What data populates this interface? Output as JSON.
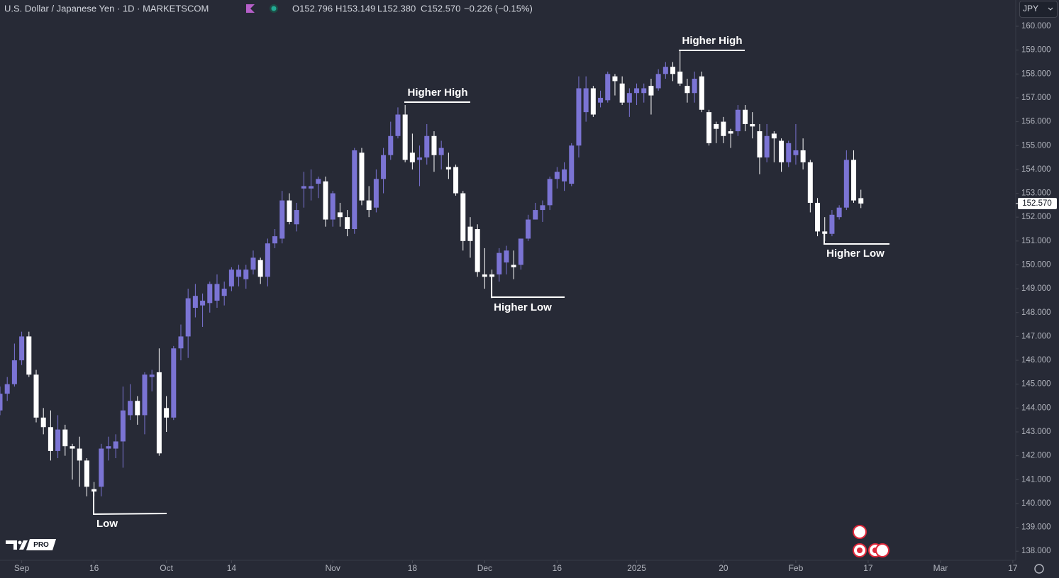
{
  "chart_data": {
    "type": "candlestick",
    "title": "U.S. Dollar / Japanese Yen · 1D · MARKETSCOM",
    "header_values": [
      "O152.796",
      "H153.149",
      "L152.380",
      "C152.570",
      "−0.226 (−0.15%)"
    ],
    "currency": "JPY",
    "logo_badge": "PRO",
    "up_color": "#7b74d4",
    "down_color": "#ffffff",
    "x": [
      0,
      1,
      2,
      3,
      4,
      5,
      6,
      7,
      8,
      9,
      10,
      11,
      12,
      13,
      14,
      15,
      16,
      17,
      18,
      19,
      20,
      21,
      22,
      23,
      24,
      25,
      26,
      27,
      28,
      29,
      30,
      31,
      32,
      33,
      34,
      35,
      36,
      37,
      38,
      39,
      40,
      41,
      42,
      43,
      44,
      45,
      46,
      47,
      48,
      49,
      50,
      51,
      52,
      53,
      54,
      55,
      56,
      57,
      58,
      59,
      60,
      61,
      62,
      63,
      64,
      65,
      66,
      67,
      68,
      69,
      70,
      71,
      72,
      73,
      74,
      75,
      76,
      77,
      78,
      79,
      80,
      81,
      82,
      83,
      84,
      85,
      86,
      87,
      88,
      89,
      90,
      91,
      92,
      93,
      94,
      95,
      96,
      97,
      98,
      99,
      100,
      101,
      102,
      103,
      104,
      105,
      106,
      107,
      108,
      109,
      110,
      111,
      112,
      113,
      114,
      115,
      116,
      117,
      118,
      119
    ],
    "open": [
      143.9,
      144.6,
      145.0,
      146.0,
      147.0,
      145.4,
      143.6,
      143.2,
      142.2,
      143.1,
      142.4,
      142.3,
      141.8,
      140.6,
      140.7,
      142.3,
      142.3,
      142.6,
      143.7,
      144.3,
      143.7,
      145.3,
      145.5,
      144.0,
      143.6,
      146.5,
      147.0,
      148.2,
      148.3,
      148.4,
      148.5,
      148.7,
      149.1,
      149.5,
      149.4,
      149.8,
      150.2,
      149.5,
      150.9,
      151.1,
      152.7,
      151.7,
      153.2,
      153.2,
      153.4,
      153.5,
      151.9,
      152.2,
      152.0,
      151.5,
      154.7,
      152.7,
      152.4,
      153.6,
      154.6,
      155.4,
      156.3,
      154.7,
      154.4,
      154.5,
      155.4,
      154.6,
      154.1,
      154.1,
      153.0,
      151.6,
      151.5,
      149.6,
      149.6,
      149.6,
      150.1,
      150.0,
      150.0,
      151.1,
      151.9,
      152.3,
      152.5,
      153.6,
      153.5,
      153.4,
      155.0,
      156.4,
      157.4,
      156.8,
      156.9,
      157.9,
      157.6,
      156.8,
      157.2,
      157.2,
      157.5,
      157.4,
      158.0,
      158.3,
      158.1,
      157.5,
      157.2,
      157.9,
      156.4,
      155.9,
      156.0,
      155.6,
      155.6,
      156.5,
      155.9,
      155.6,
      154.5,
      155.5,
      155.2,
      154.3,
      154.6,
      154.8,
      154.3,
      152.6,
      151.4,
      151.3,
      152.0,
      152.4,
      154.4,
      152.796
    ],
    "high": [
      144.9,
      145.3,
      146.7,
      147.2,
      147.2,
      145.6,
      144.0,
      143.9,
      143.7,
      143.3,
      142.5,
      142.8,
      141.9,
      140.9,
      142.5,
      142.8,
      142.9,
      144.9,
      145.0,
      144.5,
      145.5,
      145.6,
      146.5,
      144.5,
      146.6,
      147.5,
      149.0,
      149.2,
      148.8,
      149.3,
      149.6,
      149.3,
      149.9,
      150.0,
      150.0,
      150.6,
      150.3,
      151.1,
      151.5,
      153.1,
      153.0,
      152.6,
      153.9,
      154.0,
      153.7,
      153.7,
      153.1,
      152.6,
      152.3,
      154.9,
      154.9,
      153.3,
      154.0,
      154.9,
      156.0,
      156.6,
      156.7,
      155.5,
      155.0,
      155.9,
      155.6,
      155.2,
      154.7,
      154.2,
      153.1,
      152.0,
      151.7,
      150.7,
      149.8,
      150.7,
      150.8,
      150.6,
      151.1,
      152.1,
      152.6,
      152.7,
      153.7,
      154.1,
      154.3,
      155.1,
      157.9,
      157.9,
      157.5,
      157.3,
      158.1,
      158.0,
      157.9,
      157.4,
      157.6,
      157.6,
      157.8,
      158.2,
      158.5,
      158.5,
      159.0,
      157.8,
      158.1,
      158.1,
      156.5,
      156.0,
      156.2,
      155.7,
      156.7,
      156.7,
      156.4,
      155.9,
      155.9,
      155.6,
      155.3,
      155.2,
      155.9,
      155.3,
      154.4,
      152.8,
      152.0,
      152.3,
      152.5,
      154.8,
      154.8,
      153.149
    ],
    "low": [
      143.7,
      144.3,
      144.9,
      145.8,
      145.3,
      143.4,
      142.9,
      141.8,
      141.9,
      142.0,
      141.0,
      140.7,
      140.3,
      140.3,
      140.3,
      141.8,
      141.9,
      141.5,
      143.5,
      143.3,
      142.9,
      144.7,
      142.0,
      143.0,
      143.5,
      146.0,
      146.1,
      147.8,
      147.4,
      148.0,
      148.2,
      148.3,
      148.9,
      149.1,
      149.0,
      149.6,
      149.2,
      149.1,
      150.7,
      150.9,
      151.7,
      151.4,
      152.4,
      152.7,
      152.8,
      151.6,
      151.6,
      151.6,
      151.2,
      151.3,
      152.5,
      152.0,
      152.2,
      153.0,
      154.4,
      155.3,
      154.3,
      154.0,
      153.3,
      154.2,
      153.9,
      154.0,
      153.6,
      152.9,
      150.6,
      150.3,
      149.5,
      149.0,
      148.6,
      149.3,
      149.6,
      149.4,
      149.8,
      151.0,
      151.9,
      151.8,
      152.3,
      153.2,
      153.1,
      153.3,
      154.5,
      156.0,
      156.2,
      156.6,
      156.8,
      157.1,
      156.7,
      156.2,
      156.7,
      156.8,
      156.3,
      157.3,
      157.8,
      157.7,
      157.5,
      156.8,
      156.8,
      156.4,
      155.0,
      155.1,
      155.1,
      154.9,
      155.4,
      155.6,
      155.3,
      153.8,
      154.3,
      154.3,
      153.9,
      154.1,
      154.2,
      154.0,
      152.2,
      151.2,
      151.0,
      151.2,
      151.9,
      152.3,
      152.6,
      152.38
    ],
    "close": [
      144.6,
      145.0,
      146.0,
      147.0,
      145.4,
      143.6,
      143.2,
      142.2,
      143.1,
      142.4,
      142.3,
      141.8,
      140.7,
      140.5,
      142.3,
      142.4,
      142.6,
      143.9,
      144.3,
      143.7,
      145.4,
      145.4,
      142.1,
      143.6,
      146.5,
      147.0,
      148.6,
      148.7,
      148.5,
      149.2,
      149.2,
      149.0,
      149.8,
      149.8,
      149.8,
      150.3,
      149.5,
      150.9,
      151.2,
      152.7,
      151.8,
      152.3,
      153.3,
      153.3,
      153.6,
      151.9,
      153.0,
      152.0,
      151.5,
      154.8,
      152.7,
      152.3,
      153.6,
      154.6,
      155.4,
      156.3,
      154.4,
      154.3,
      154.5,
      155.4,
      154.6,
      154.9,
      154.0,
      153.0,
      151.0,
      151.0,
      149.7,
      149.5,
      149.5,
      150.5,
      150.6,
      149.9,
      151.1,
      151.9,
      152.3,
      152.5,
      153.6,
      153.9,
      154.0,
      155.0,
      157.4,
      157.4,
      156.3,
      157.0,
      158.0,
      157.7,
      156.8,
      157.2,
      157.4,
      157.4,
      157.1,
      158.0,
      158.3,
      158.0,
      157.6,
      157.2,
      157.8,
      156.5,
      155.1,
      155.7,
      155.4,
      155.5,
      156.5,
      155.9,
      155.8,
      154.5,
      155.4,
      155.3,
      154.3,
      155.1,
      154.8,
      154.3,
      152.6,
      151.4,
      151.3,
      152.1,
      152.4,
      154.4,
      152.7,
      152.57
    ],
    "last_price": {
      "value": 152.57,
      "label": "152.570"
    },
    "xlim": [
      0,
      140.4
    ],
    "ylim": [
      137.62,
      161.1
    ],
    "xticks": [
      {
        "value": 3,
        "label": "Sep"
      },
      {
        "value": 13,
        "label": "16"
      },
      {
        "value": 23,
        "label": "Oct"
      },
      {
        "value": 32,
        "label": "14"
      },
      {
        "value": 46,
        "label": "Nov"
      },
      {
        "value": 57,
        "label": "18"
      },
      {
        "value": 67,
        "label": "Dec"
      },
      {
        "value": 77,
        "label": "16"
      },
      {
        "value": 88,
        "label": "2025"
      },
      {
        "value": 100,
        "label": "20"
      },
      {
        "value": 110,
        "label": "Feb"
      },
      {
        "value": 120,
        "label": "17"
      },
      {
        "value": 130,
        "label": "Mar"
      },
      {
        "value": 140,
        "label": "17"
      }
    ],
    "yticks": [
      {
        "value": 138,
        "label": "138.000"
      },
      {
        "value": 139,
        "label": "139.000"
      },
      {
        "value": 140,
        "label": "140.000"
      },
      {
        "value": 141,
        "label": "141.000"
      },
      {
        "value": 142,
        "label": "142.000"
      },
      {
        "value": 143,
        "label": "143.000"
      },
      {
        "value": 144,
        "label": "144.000"
      },
      {
        "value": 145,
        "label": "145.000"
      },
      {
        "value": 146,
        "label": "146.000"
      },
      {
        "value": 147,
        "label": "147.000"
      },
      {
        "value": 148,
        "label": "148.000"
      },
      {
        "value": 149,
        "label": "149.000"
      },
      {
        "value": 150,
        "label": "150.000"
      },
      {
        "value": 151,
        "label": "151.000"
      },
      {
        "value": 152,
        "label": "152.000"
      },
      {
        "value": 153,
        "label": "153.000"
      },
      {
        "value": 154,
        "label": "154.000"
      },
      {
        "value": 155,
        "label": "155.000"
      },
      {
        "value": 156,
        "label": "156.000"
      },
      {
        "value": 157,
        "label": "157.000"
      },
      {
        "value": 158,
        "label": "158.000"
      },
      {
        "value": 159,
        "label": "159.000"
      },
      {
        "value": 160,
        "label": "160.000"
      }
    ],
    "annotations": [
      "Higher High",
      "Higher High",
      "Higher Low",
      "Higher Low",
      "Low"
    ]
  }
}
